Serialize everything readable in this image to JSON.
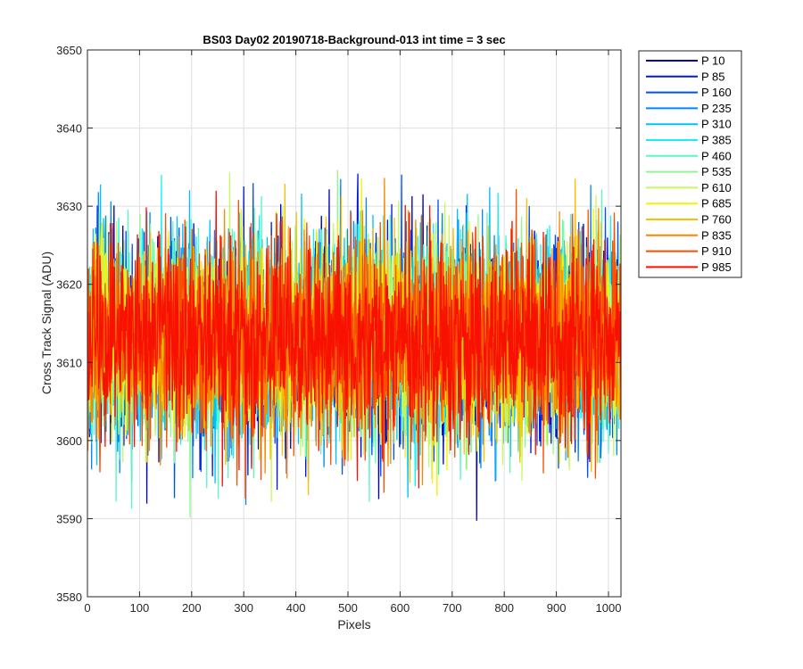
{
  "chart_data": {
    "type": "line",
    "title": "BS03 Day02 20190718-Background-013 int time = 3 sec",
    "xlabel": "Pixels",
    "ylabel": "Cross Track Signal (ADU)",
    "xlim": [
      0,
      1024
    ],
    "ylim": [
      3580,
      3650
    ],
    "xticks": [
      0,
      100,
      200,
      300,
      400,
      500,
      600,
      700,
      800,
      900,
      1000
    ],
    "yticks": [
      3580,
      3590,
      3600,
      3610,
      3620,
      3630,
      3640,
      3650
    ],
    "xtick_labels": [
      "0",
      "100",
      "200",
      "300",
      "400",
      "500",
      "600",
      "700",
      "800",
      "900",
      "1000"
    ],
    "ytick_labels": [
      "3580",
      "3590",
      "3600",
      "3610",
      "3620",
      "3630",
      "3640",
      "3650"
    ],
    "grid": true,
    "legend_position": "outside-top-right",
    "points_per_series": 1024,
    "noise_mean": 3613,
    "noise_sd": 6.2,
    "series": [
      {
        "name": "P 10",
        "color": "#0000b8"
      },
      {
        "name": "P 85",
        "color": "#0018d8"
      },
      {
        "name": "P 160",
        "color": "#0050f0"
      },
      {
        "name": "P 235",
        "color": "#0088f8"
      },
      {
        "name": "P 310",
        "color": "#00c0f8"
      },
      {
        "name": "P 385",
        "color": "#18f0f0"
      },
      {
        "name": "P 460",
        "color": "#58f8c0"
      },
      {
        "name": "P 535",
        "color": "#90f890"
      },
      {
        "name": "P 610",
        "color": "#c8f860"
      },
      {
        "name": "P 685",
        "color": "#f8f000"
      },
      {
        "name": "P 760",
        "color": "#f8c000"
      },
      {
        "name": "P 835",
        "color": "#f88800"
      },
      {
        "name": "P 910",
        "color": "#f85000"
      },
      {
        "name": "P 985",
        "color": "#f81000"
      }
    ]
  }
}
